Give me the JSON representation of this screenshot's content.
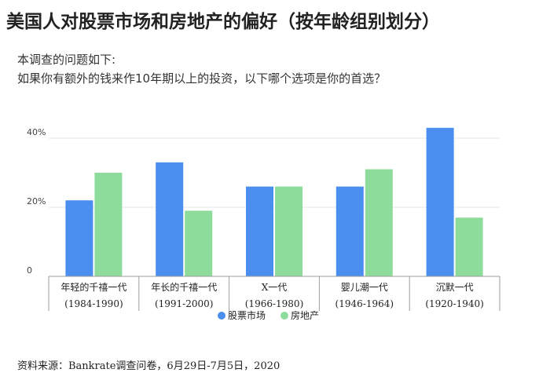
{
  "title": "美国人对股票市场和房地产的偏好（按年龄组别划分）",
  "subtitle_line1": "本调查的问题如下:",
  "subtitle_line2": "如果你有额外的钱来作10年期以上的投资，以下哪个选项是你的首选？",
  "source": "资料来源：Bankrate调查问卷，6月29日-7月5日，2020",
  "colors": {
    "stocks": "#4a8ef0",
    "realestate": "#8ddc9b",
    "grid": "#e6e6e6",
    "axis": "#9e9e9e"
  },
  "chart_data": {
    "type": "bar",
    "categories": [
      [
        "年轻的千禧一代",
        "(1984-1990)"
      ],
      [
        "年长的千禧一代",
        "(1991-2000)"
      ],
      [
        "X一代",
        "(1966-1980)"
      ],
      [
        "婴儿潮一代",
        "(1946-1964)"
      ],
      [
        "沉默一代",
        "(1920-1940)"
      ]
    ],
    "series": [
      {
        "name": "股票市场",
        "values": [
          22,
          33,
          26,
          26,
          43
        ]
      },
      {
        "name": "房地产",
        "values": [
          30,
          19,
          26,
          31,
          17
        ]
      }
    ],
    "yticks": [
      0,
      20,
      40
    ],
    "ytick_labels": [
      "0",
      "20%",
      "40%"
    ],
    "ylim": [
      0,
      45
    ],
    "legend_position": "bottom"
  }
}
